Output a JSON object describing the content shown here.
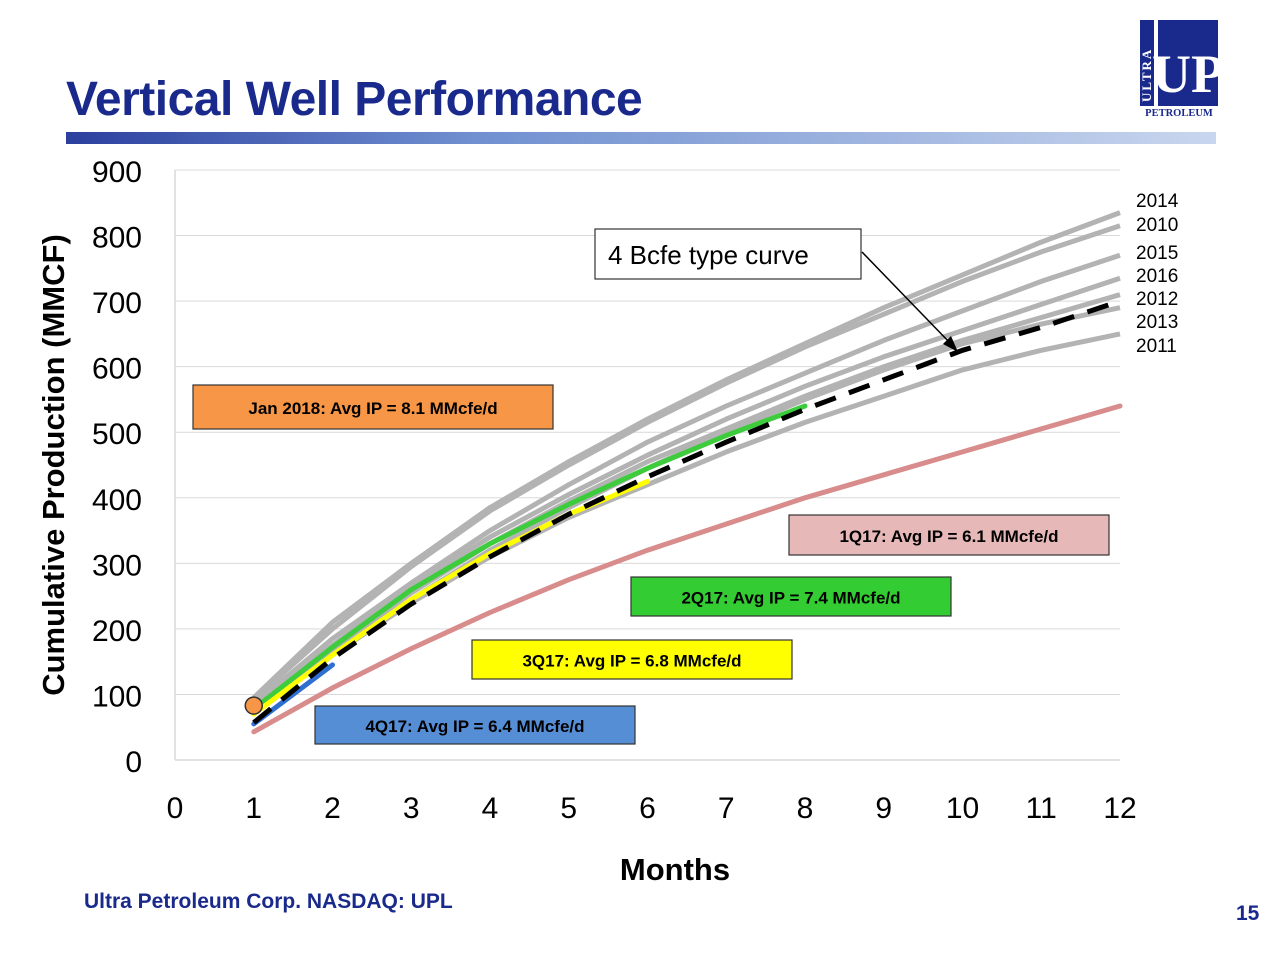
{
  "slide": {
    "title": "Vertical Well Performance",
    "footer": "Ultra Petroleum Corp. NASDAQ: UPL",
    "page_number": "15",
    "logo_vertical_text": "ULTRA",
    "logo_main_text": "UP",
    "logo_sub_text": "PETROLEUM",
    "colors": {
      "title": "#1a2a8c",
      "gray_curves": "#b3b3b3",
      "type_curve": "#000000"
    }
  },
  "chart_data": {
    "type": "line",
    "xlabel": "Months",
    "ylabel": "Cumulative Production (MMCF)",
    "xlim": [
      0,
      12
    ],
    "ylim": [
      0,
      900
    ],
    "x_ticks": [
      "0",
      "1",
      "2",
      "3",
      "4",
      "5",
      "6",
      "7",
      "8",
      "9",
      "10",
      "11",
      "12"
    ],
    "y_ticks": [
      "0",
      "100",
      "200",
      "300",
      "400",
      "500",
      "600",
      "700",
      "800",
      "900"
    ],
    "grid": "horizontal",
    "vintage_series": [
      {
        "name": "2014",
        "x": [
          1,
          2,
          3,
          4,
          5,
          6,
          7,
          8,
          9,
          10,
          11,
          12
        ],
        "y": [
          95,
          210,
          300,
          385,
          455,
          520,
          580,
          635,
          690,
          740,
          790,
          835
        ],
        "color": "#b3b3b3"
      },
      {
        "name": "2010",
        "x": [
          1,
          2,
          3,
          4,
          5,
          6,
          7,
          8,
          9,
          10,
          11,
          12
        ],
        "y": [
          92,
          200,
          295,
          380,
          450,
          515,
          575,
          630,
          680,
          730,
          775,
          815
        ],
        "color": "#b3b3b3"
      },
      {
        "name": "2015",
        "x": [
          1,
          2,
          3,
          4,
          5,
          6,
          7,
          8,
          9,
          10,
          11,
          12
        ],
        "y": [
          85,
          185,
          270,
          350,
          420,
          485,
          540,
          590,
          640,
          685,
          730,
          770
        ],
        "color": "#b3b3b3"
      },
      {
        "name": "2016",
        "x": [
          1,
          2,
          3,
          4,
          5,
          6,
          7,
          8,
          9,
          10,
          11,
          12
        ],
        "y": [
          80,
          175,
          265,
          340,
          405,
          465,
          520,
          570,
          615,
          655,
          695,
          735
        ],
        "color": "#b3b3b3"
      },
      {
        "name": "2012",
        "x": [
          1,
          2,
          3,
          4,
          5,
          6,
          7,
          8,
          9,
          10,
          11,
          12
        ],
        "y": [
          78,
          170,
          255,
          330,
          395,
          455,
          505,
          555,
          600,
          640,
          675,
          710
        ],
        "color": "#b3b3b3"
      },
      {
        "name": "2013",
        "x": [
          1,
          2,
          3,
          4,
          5,
          6,
          7,
          8,
          9,
          10,
          11,
          12
        ],
        "y": [
          75,
          165,
          245,
          320,
          385,
          445,
          500,
          550,
          595,
          635,
          665,
          690
        ],
        "color": "#b3b3b3"
      },
      {
        "name": "2011",
        "x": [
          1,
          2,
          3,
          4,
          5,
          6,
          7,
          8,
          9,
          10,
          11,
          12
        ],
        "y": [
          72,
          160,
          240,
          310,
          370,
          420,
          470,
          515,
          555,
          595,
          625,
          650
        ],
        "color": "#b3b3b3"
      }
    ],
    "quarter_series": [
      {
        "name": "1Q17",
        "x": [
          1,
          2,
          3,
          4,
          5,
          6,
          7,
          8,
          9,
          10,
          11,
          12
        ],
        "y": [
          43,
          110,
          170,
          225,
          275,
          320,
          360,
          400,
          435,
          470,
          505,
          540
        ],
        "color": "#d88c8c"
      },
      {
        "name": "2Q17",
        "x": [
          1,
          2,
          3,
          4,
          5,
          6,
          7,
          8
        ],
        "y": [
          78,
          172,
          260,
          330,
          390,
          445,
          495,
          540
        ],
        "color": "#3ccc3c"
      },
      {
        "name": "3Q17",
        "x": [
          1,
          2,
          3,
          4,
          5,
          6
        ],
        "y": [
          70,
          160,
          245,
          315,
          375,
          425
        ],
        "color": "#ffff00"
      },
      {
        "name": "4Q17",
        "x": [
          1,
          2
        ],
        "y": [
          55,
          145
        ],
        "color": "#2f6fd0"
      }
    ],
    "type_curve": {
      "name": "4 Bcfe type curve",
      "x": [
        1,
        2,
        3,
        4,
        5,
        6,
        7,
        8,
        9,
        10,
        11,
        12
      ],
      "y": [
        57,
        155,
        238,
        310,
        375,
        432,
        485,
        535,
        580,
        625,
        660,
        700
      ],
      "color": "#000000"
    },
    "jan_2018_point": {
      "x": 1,
      "y": 83,
      "color": "#f79646"
    },
    "callout": {
      "text": "4 Bcfe type curve"
    },
    "annotations": [
      {
        "text": "Jan 2018:  Avg IP = 8.1 MMcfe/d",
        "fill": "#f79646"
      },
      {
        "text": "1Q17:  Avg IP = 6.1 MMcfe/d",
        "fill": "#e6b8b8"
      },
      {
        "text": "2Q17:  Avg IP = 7.4 MMcfe/d",
        "fill": "#33cc33"
      },
      {
        "text": "3Q17:  Avg IP = 6.8 MMcfe/d",
        "fill": "#ffff00"
      },
      {
        "text": "4Q17:  Avg IP = 6.4 MMcfe/d",
        "fill": "#558ed5"
      }
    ],
    "legend_labels": [
      "2014",
      "2010",
      "2015",
      "2016",
      "2012",
      "2013",
      "2011"
    ]
  }
}
